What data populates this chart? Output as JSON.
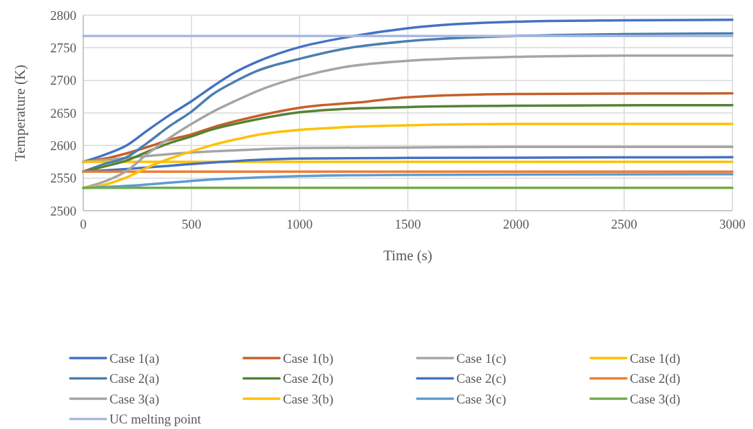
{
  "chart_data": {
    "type": "line",
    "xlabel": "Time (s)",
    "ylabel": "Temperature (K)",
    "xlim": [
      0,
      3000
    ],
    "xticks": [
      0,
      500,
      1000,
      1500,
      2000,
      2500,
      3000
    ],
    "ylim": [
      2500,
      2800
    ],
    "yticks": [
      2500,
      2550,
      2600,
      2650,
      2700,
      2750,
      2800
    ],
    "grid": true,
    "legend": "bottom",
    "marker": "none",
    "line_style": "solid",
    "series": [
      {
        "name": "Case 1(a)",
        "color": "#4472c4",
        "x": [
          0,
          100,
          200,
          300,
          400,
          500,
          600,
          700,
          800,
          1000,
          1200,
          1500,
          2000,
          2500,
          3000
        ],
        "values": [
          2575,
          2586,
          2600,
          2624,
          2647,
          2668,
          2691,
          2712,
          2728,
          2751,
          2765,
          2780,
          2790,
          2792,
          2793
        ]
      },
      {
        "name": "Case 1(b)",
        "color": "#c65f2a",
        "x": [
          0,
          100,
          200,
          300,
          400,
          500,
          600,
          700,
          800,
          1000,
          1300,
          1500,
          2000,
          3000
        ],
        "values": [
          2575,
          2580,
          2588,
          2598,
          2609,
          2617,
          2628,
          2637,
          2645,
          2658,
          2667,
          2674,
          2679,
          2680
        ]
      },
      {
        "name": "Case 1(c)",
        "color": "#a5a5a5",
        "x": [
          0,
          200,
          400,
          600,
          800,
          1000,
          1500,
          2000,
          3000
        ],
        "values": [
          2575,
          2581,
          2587,
          2591,
          2594,
          2596,
          2597,
          2598,
          2598
        ]
      },
      {
        "name": "Case 1(d)",
        "color": "#ffc000",
        "x": [
          0,
          3000
        ],
        "values": [
          2575,
          2575
        ]
      },
      {
        "name": "Case 2(a)",
        "color": "#4a7fb0",
        "x": [
          0,
          100,
          200,
          300,
          400,
          500,
          600,
          700,
          800,
          1000,
          1200,
          1500,
          2000,
          2500,
          3000
        ],
        "values": [
          2560,
          2572,
          2582,
          2605,
          2630,
          2652,
          2679,
          2698,
          2714,
          2733,
          2748,
          2760,
          2768,
          2771,
          2772
        ]
      },
      {
        "name": "Case 2(b)",
        "color": "#548235",
        "x": [
          0,
          100,
          200,
          300,
          400,
          500,
          600,
          700,
          800,
          1000,
          1200,
          1500,
          2000,
          3000
        ],
        "values": [
          2560,
          2568,
          2577,
          2591,
          2604,
          2614,
          2625,
          2633,
          2640,
          2651,
          2656,
          2659,
          2661,
          2662
        ]
      },
      {
        "name": "Case 2(c)",
        "color": "#4472c4",
        "x": [
          0,
          200,
          400,
          600,
          800,
          1000,
          1500,
          3000
        ],
        "values": [
          2560,
          2564,
          2569,
          2574,
          2578,
          2580,
          2581,
          2582
        ]
      },
      {
        "name": "Case 2(d)",
        "color": "#ed7d31",
        "x": [
          0,
          3000
        ],
        "values": [
          2560,
          2560
        ]
      },
      {
        "name": "Case 3(a)",
        "color": "#a5a5a5",
        "x": [
          0,
          100,
          200,
          300,
          400,
          500,
          600,
          700,
          800,
          1000,
          1200,
          1500,
          2000,
          2500,
          3000
        ],
        "values": [
          2535,
          2545,
          2561,
          2588,
          2612,
          2633,
          2652,
          2668,
          2683,
          2705,
          2720,
          2730,
          2736,
          2738,
          2738
        ]
      },
      {
        "name": "Case 3(b)",
        "color": "#ffc000",
        "x": [
          0,
          100,
          200,
          300,
          400,
          500,
          600,
          700,
          800,
          1000,
          1200,
          1500,
          2000,
          3000
        ],
        "values": [
          2535,
          2540,
          2551,
          2567,
          2580,
          2591,
          2601,
          2609,
          2616,
          2624,
          2628,
          2631,
          2633,
          2633
        ]
      },
      {
        "name": "Case 3(c)",
        "color": "#5b9bd5",
        "x": [
          0,
          200,
          400,
          600,
          800,
          1000,
          1500,
          3000
        ],
        "values": [
          2535,
          2538,
          2543,
          2548,
          2551,
          2553,
          2555,
          2556
        ]
      },
      {
        "name": "Case 3(d)",
        "color": "#70ad47",
        "x": [
          0,
          3000
        ],
        "values": [
          2535,
          2535
        ]
      },
      {
        "name": "UC melting point",
        "color": "#a9b8e0",
        "x": [
          0,
          3000
        ],
        "values": [
          2768,
          2768
        ]
      }
    ]
  }
}
